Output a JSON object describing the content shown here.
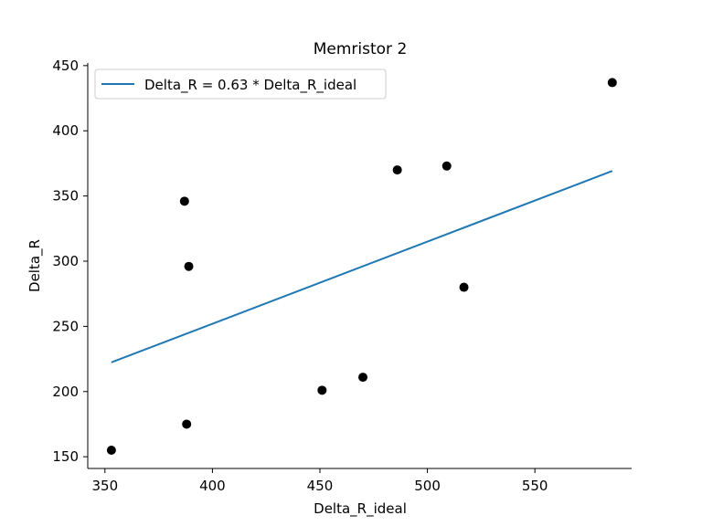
{
  "chart_data": {
    "type": "scatter",
    "title": "Memristor 2",
    "xlabel": "Delta_R_ideal",
    "ylabel": "Delta_R",
    "xlim": [
      342,
      595
    ],
    "ylim": [
      141,
      452
    ],
    "xticks": [
      350,
      400,
      450,
      500,
      550
    ],
    "yticks": [
      150,
      200,
      250,
      300,
      350,
      400,
      450
    ],
    "grid": false,
    "legend_position": "upper-left",
    "points": [
      {
        "x": 353,
        "y": 155
      },
      {
        "x": 387,
        "y": 346
      },
      {
        "x": 388,
        "y": 175
      },
      {
        "x": 389,
        "y": 296
      },
      {
        "x": 451,
        "y": 201
      },
      {
        "x": 470,
        "y": 211
      },
      {
        "x": 486,
        "y": 370
      },
      {
        "x": 509,
        "y": 373
      },
      {
        "x": 517,
        "y": 280
      },
      {
        "x": 586,
        "y": 437
      }
    ],
    "fit_line": {
      "name": "Delta_R = 0.63 * Delta_R_ideal",
      "slope": 0.63,
      "x_range": [
        353,
        586
      ]
    },
    "colors": {
      "points": "#000000",
      "line": "#1f77b4",
      "axes": "#000000",
      "legend_border": "#cccccc"
    }
  }
}
